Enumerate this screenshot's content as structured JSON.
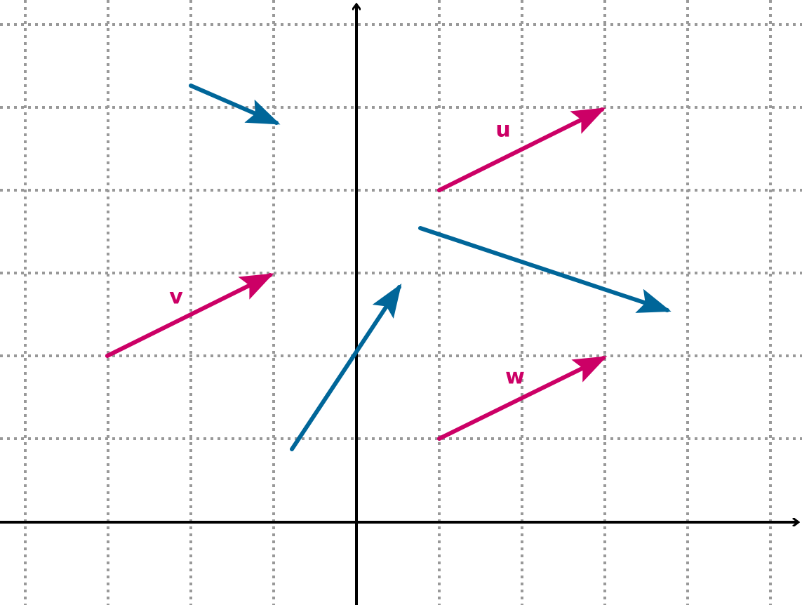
{
  "vectors": [
    {
      "label": "u"
    },
    {
      "label": "v"
    },
    {
      "label": "w"
    }
  ]
}
